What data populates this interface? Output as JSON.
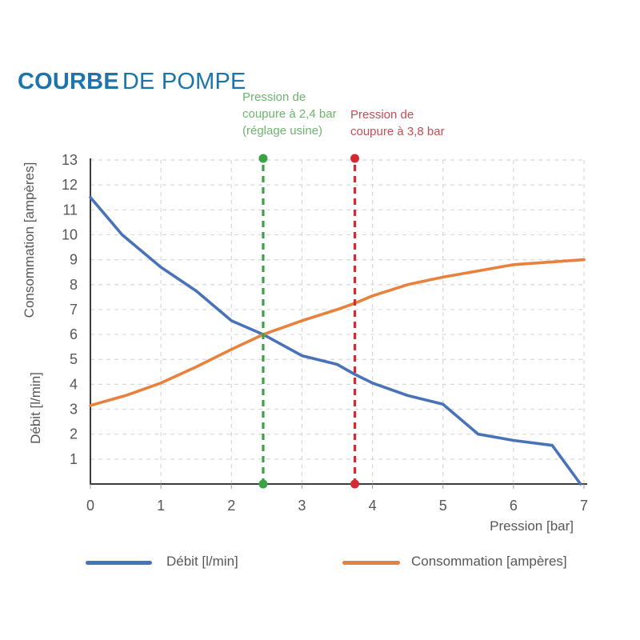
{
  "title": {
    "bold": "COURBE",
    "regular": "DE POMPE"
  },
  "annotations": {
    "factory": {
      "lines": [
        "Pression de",
        "coupure à 2,4 bar",
        "(réglage usine)"
      ],
      "cutoff_bar": "2,4",
      "x": 2.45,
      "text_color": "#6eb46e",
      "line_color": "#3ba345"
    },
    "max": {
      "lines": [
        "Pression de",
        "coupure à 3,8 bar"
      ],
      "cutoff_bar": "3,8",
      "x": 3.75,
      "text_color": "#c84b55",
      "line_color": "#d32b35"
    }
  },
  "chart_data": {
    "type": "line",
    "title": "COURBE DE POMPE",
    "xlabel": "Pression [bar]",
    "ylabel_top": "Consommation [ampères]",
    "ylabel_bottom": "Débit [l/min]",
    "xlim": [
      0,
      7
    ],
    "ylim": [
      0,
      13
    ],
    "xticks": [
      0,
      1,
      2,
      3,
      4,
      5,
      6,
      7
    ],
    "yticks": [
      1,
      2,
      3,
      4,
      5,
      6,
      7,
      8,
      9,
      10,
      11,
      12,
      13
    ],
    "grid": "dashed",
    "legend_position": "bottom",
    "series": [
      {
        "name": "Débit [l/min]",
        "color": "#4973b8",
        "x": [
          0,
          0.45,
          1,
          1.5,
          2,
          2.45,
          3,
          3.5,
          3.75,
          4,
          4.5,
          5,
          5.5,
          6,
          6.55,
          6.95
        ],
        "y": [
          11.5,
          10.0,
          8.7,
          7.75,
          6.55,
          6.0,
          5.15,
          4.8,
          4.4,
          4.05,
          3.55,
          3.2,
          2.0,
          1.75,
          1.55,
          0
        ]
      },
      {
        "name": "Consommation [ampères]",
        "color": "#e8813c",
        "x": [
          0,
          0.5,
          1,
          1.5,
          2,
          2.45,
          3,
          3.5,
          3.75,
          4,
          4.5,
          5,
          5.5,
          6,
          6.5,
          7
        ],
        "y": [
          3.15,
          3.55,
          4.05,
          4.7,
          5.4,
          6.0,
          6.55,
          7.0,
          7.25,
          7.55,
          8.0,
          8.3,
          8.55,
          8.8,
          8.9,
          9.0
        ]
      }
    ],
    "grid_color": "#d8d8d8",
    "axis_color": "#3c3c3c"
  },
  "legend": {
    "items": [
      {
        "label": "Débit [l/min]"
      },
      {
        "label": "Consommation [ampères]"
      }
    ]
  }
}
